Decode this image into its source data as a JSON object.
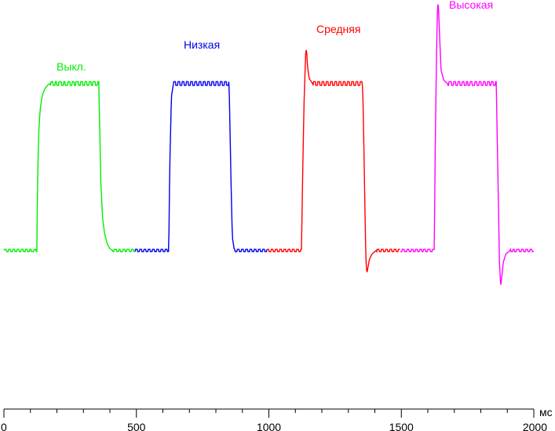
{
  "chart_data": {
    "type": "line",
    "title": "",
    "xlabel": "мс",
    "ylabel": "",
    "xlim": [
      0,
      2000
    ],
    "ylim": [
      -95,
      150
    ],
    "x_ticks_major": [
      0,
      500,
      1000,
      1500,
      2000
    ],
    "x_tick_labels": [
      "0",
      "500",
      "1000",
      "1500",
      "2000"
    ],
    "x_tick_minor_step": 100,
    "grid": false,
    "ripple": {
      "amplitude": 1.1,
      "period_ms": 16
    },
    "series": [
      {
        "name": "Выкл.",
        "color": "#00ee00",
        "points": [
          [
            0,
            0
          ],
          [
            124,
            0
          ],
          [
            127,
            40
          ],
          [
            131,
            70
          ],
          [
            137,
            85
          ],
          [
            145,
            93
          ],
          [
            155,
            97
          ],
          [
            165,
            99
          ],
          [
            175,
            100
          ],
          [
            358,
            100
          ],
          [
            362,
            70
          ],
          [
            366,
            40
          ],
          [
            372,
            20
          ],
          [
            380,
            10
          ],
          [
            390,
            4
          ],
          [
            400,
            1
          ],
          [
            410,
            0
          ],
          [
            495,
            0
          ]
        ]
      },
      {
        "name": "Низкая",
        "color": "#0000ee",
        "points": [
          [
            495,
            0
          ],
          [
            622,
            0
          ],
          [
            626,
            50
          ],
          [
            632,
            92
          ],
          [
            640,
            100
          ],
          [
            850,
            100
          ],
          [
            856,
            50
          ],
          [
            862,
            8
          ],
          [
            870,
            0
          ],
          [
            993,
            0
          ]
        ]
      },
      {
        "name": "Средняя",
        "color": "#ff0000",
        "points": [
          [
            993,
            0
          ],
          [
            1123,
            0
          ],
          [
            1127,
            40
          ],
          [
            1133,
            90
          ],
          [
            1139,
            118
          ],
          [
            1142,
            121
          ],
          [
            1146,
            110
          ],
          [
            1152,
            103
          ],
          [
            1165,
            100
          ],
          [
            1354,
            100
          ],
          [
            1360,
            50
          ],
          [
            1366,
            -5
          ],
          [
            1370,
            -14
          ],
          [
            1374,
            -10
          ],
          [
            1380,
            -5
          ],
          [
            1390,
            -2
          ],
          [
            1405,
            0
          ],
          [
            1496,
            0
          ]
        ]
      },
      {
        "name": "Высокая",
        "color": "#ff00ff",
        "points": [
          [
            1496,
            0
          ],
          [
            1624,
            0
          ],
          [
            1628,
            60
          ],
          [
            1633,
            120
          ],
          [
            1637,
            148
          ],
          [
            1640,
            146
          ],
          [
            1644,
            130
          ],
          [
            1650,
            108
          ],
          [
            1660,
            102
          ],
          [
            1674,
            100
          ],
          [
            1858,
            100
          ],
          [
            1864,
            50
          ],
          [
            1870,
            -5
          ],
          [
            1875,
            -22
          ],
          [
            1879,
            -16
          ],
          [
            1885,
            -7
          ],
          [
            1895,
            -2
          ],
          [
            1911,
            0
          ],
          [
            2000,
            0
          ]
        ]
      }
    ]
  }
}
